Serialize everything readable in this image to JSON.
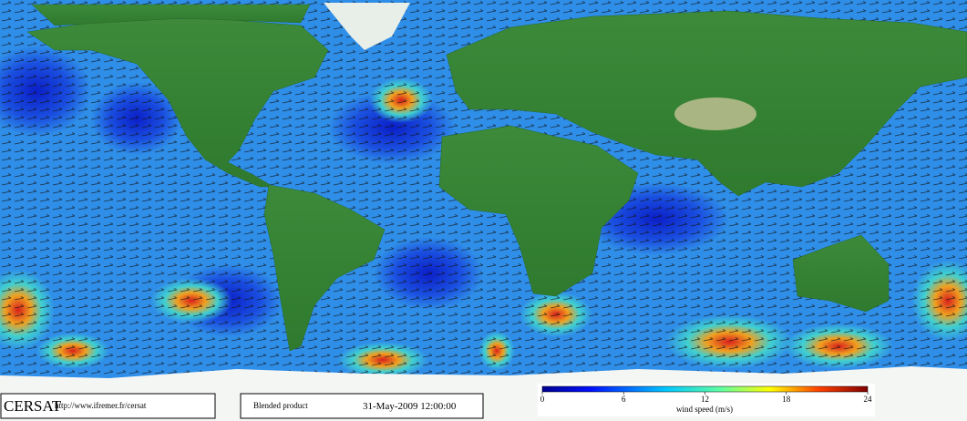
{
  "footer": {
    "brand": "CERSAT",
    "url": "http://www.ifremer.fr/cersat",
    "product": "Blended product",
    "date": "31-May-2009 12:00:00"
  },
  "colorbar": {
    "label": "wind speed (m/s)",
    "lim": [
      0,
      24
    ],
    "ticks": [
      0,
      6,
      12,
      18,
      24
    ]
  }
}
